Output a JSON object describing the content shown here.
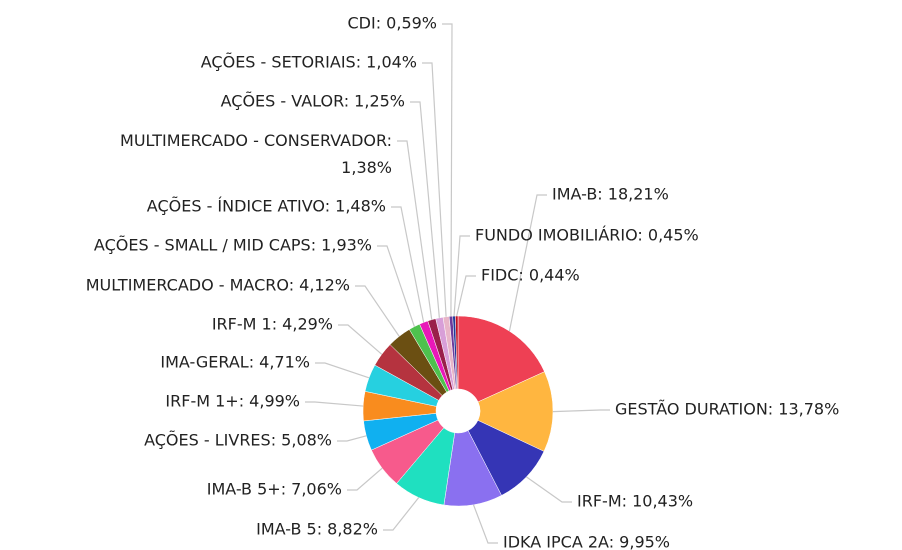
{
  "chart_data": {
    "type": "pie",
    "values": [
      18.21,
      13.78,
      10.43,
      9.95,
      8.82,
      7.06,
      5.08,
      4.99,
      4.71,
      4.29,
      4.12,
      1.93,
      1.48,
      1.38,
      1.25,
      1.04,
      0.59,
      0.45,
      0.44
    ],
    "value_labels": [
      "IMA-B: 18,21%",
      "GESTÃO DURATION: 13,78%",
      "IRF-M: 10,43%",
      "IDKA IPCA 2A: 9,95%",
      "IMA-B 5: 8,82%",
      "IMA-B 5+: 7,06%",
      "AÇÕES - LIVRES: 5,08%",
      "IRF-M 1+: 4,99%",
      "IMA-GERAL: 4,71%",
      "IRF-M 1: 4,29%",
      "MULTIMERCADO - MACRO: 4,12%",
      "AÇÕES - SMALL / MID CAPS: 1,93%",
      "AÇÕES - ÍNDICE ATIVO: 1,48%",
      "MULTIMERCADO - CONSERVADOR: 1,38%",
      "AÇÕES - VALOR: 1,25%",
      "AÇÕES - SETORIAIS: 1,04%",
      "CDI: 0,59%",
      "FUNDO IMOBILIÁRIO: 0,45%",
      "FIDC: 0,44%"
    ],
    "colors": [
      "#ee4054",
      "#ffb640",
      "#3535b5",
      "#8a70f0",
      "#1fe0c0",
      "#f75a8c",
      "#10b0f0",
      "#f98c1e",
      "#26d0e0",
      "#b5333f",
      "#6b4f12",
      "#4ec24e",
      "#e818b8",
      "#9a1f4a",
      "#d89fd8",
      "#e8b5c8",
      "#6a3a9a",
      "#1e3a9a",
      "#c01020"
    ]
  }
}
